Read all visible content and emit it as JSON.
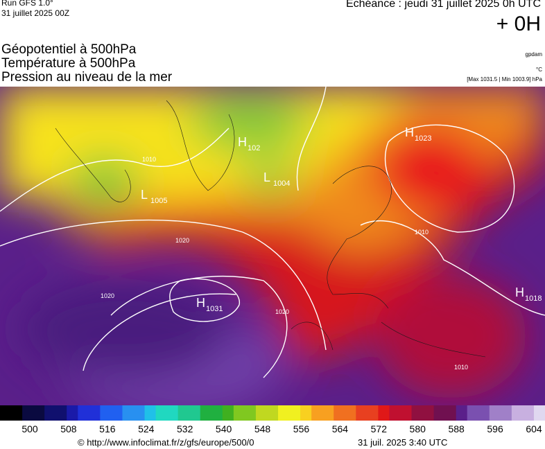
{
  "header": {
    "run": "Run GFS 1.0°",
    "run_date": "31 juillet 2025 00Z",
    "echeance": "Echéance : jeudi 31 juillet 2025 0h UTC",
    "offset": "+ 0H",
    "layers": [
      "Géopotentiel à 500hPa",
      "Température à 500hPa",
      "Pression au niveau de la mer"
    ],
    "unit_geo": "gpdam",
    "unit_temp": "°C",
    "pressure_range": "[Max 1031.5 | Min 1003.9] hPa"
  },
  "map": {
    "labels": [
      {
        "letter": "H",
        "value": "1023"
      },
      {
        "letter": "H",
        "value": "1031"
      },
      {
        "letter": "L",
        "value": "1005"
      },
      {
        "letter": "H",
        "value": "1018"
      },
      {
        "letter": "L",
        "value": "1004"
      },
      {
        "letter": "H",
        "value": "102"
      }
    ],
    "isobars": [
      "1020",
      "1010",
      "1020",
      "1010",
      "1010",
      "1020"
    ]
  },
  "colorbar": {
    "ticks": [
      500,
      508,
      516,
      524,
      532,
      540,
      548,
      556,
      564,
      572,
      580,
      588,
      596,
      604
    ]
  },
  "footer": {
    "source": "© http://www.infoclimat.fr/z/gfs/europe/500/0",
    "timestamp": "31 juil. 2025  3:40 UTC"
  }
}
